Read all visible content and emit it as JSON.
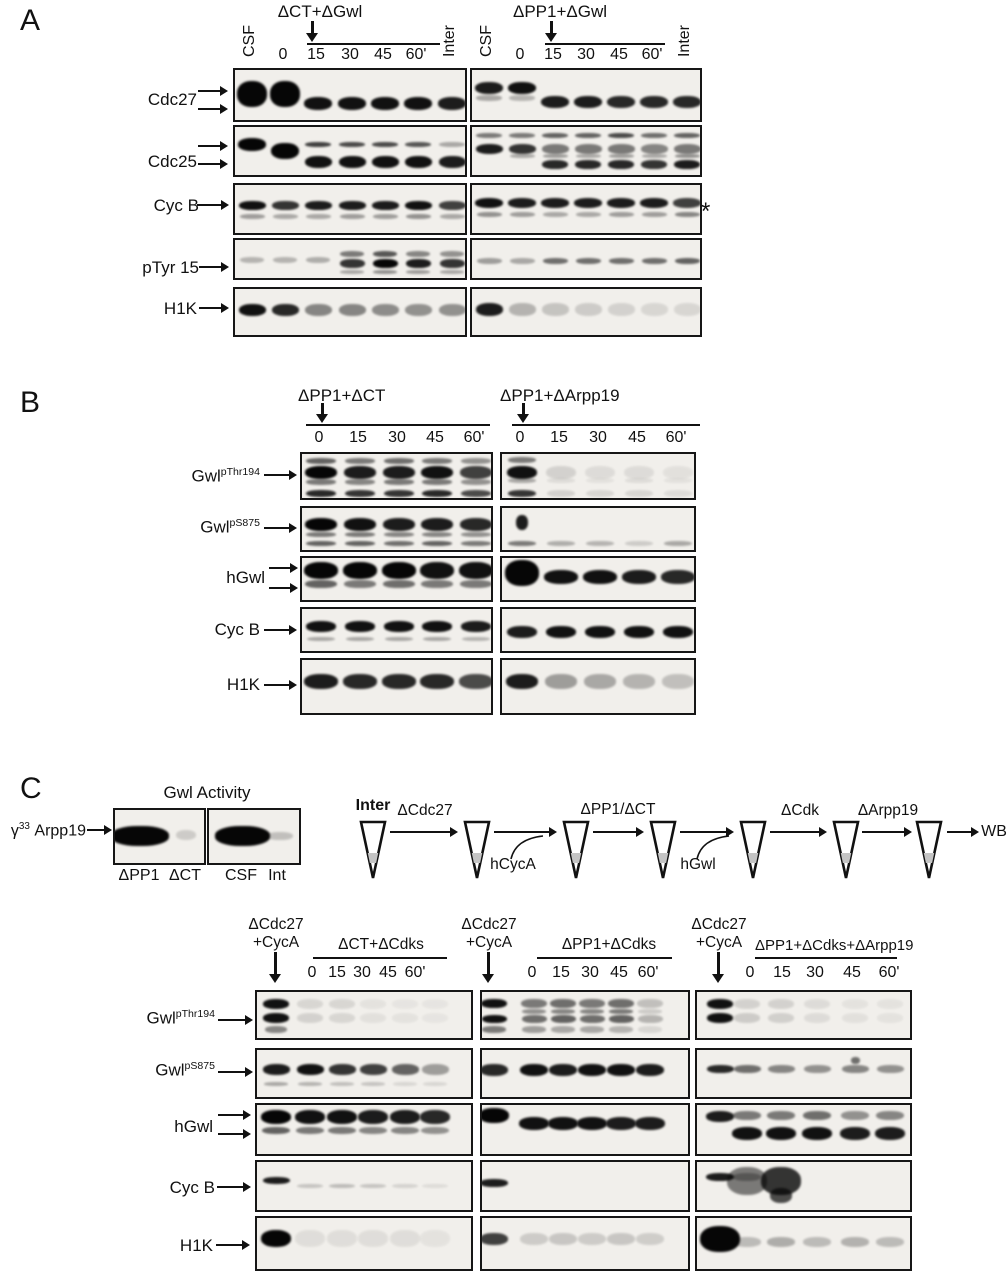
{
  "panel_a": {
    "label": "A",
    "group1": {
      "title": "ΔCT+ΔGwl",
      "lanes": [
        "CSF",
        "0",
        "15",
        "30",
        "45",
        "60'",
        "Inter"
      ]
    },
    "group2": {
      "title": "ΔPP1+ΔGwl",
      "lanes": [
        "CSF",
        "0",
        "15",
        "30",
        "45",
        "60'",
        "Inter"
      ]
    },
    "rows": [
      {
        "label": "Cdc27"
      },
      {
        "label": "Cdc25"
      },
      {
        "label": "Cyc B"
      },
      {
        "label": "pTyr 15"
      },
      {
        "label": "H1K"
      }
    ],
    "asterisk": "*"
  },
  "panel_b": {
    "label": "B",
    "group1": {
      "title": "ΔPP1+ΔCT",
      "lanes": [
        "0",
        "15",
        "30",
        "45",
        "60'"
      ]
    },
    "group2": {
      "title": "ΔPP1+ΔArpp19",
      "lanes": [
        "0",
        "15",
        "30",
        "45",
        "60'"
      ]
    },
    "rows": [
      {
        "base": "Gwl",
        "sup": "pThr194"
      },
      {
        "base": "Gwl",
        "sup": "pS875"
      },
      {
        "base": "hGwl",
        "sup": ""
      },
      {
        "base": "Cyc B",
        "sup": ""
      },
      {
        "base": "H1K",
        "sup": ""
      }
    ]
  },
  "panel_c": {
    "label": "C",
    "activity": {
      "title": "Gwl Activity",
      "probe_pre": "γ",
      "probe_sup": "33",
      "probe_post": " Arpp19",
      "lanes": [
        "ΔPP1",
        "ΔCT",
        "CSF",
        "Int"
      ]
    },
    "workflow": {
      "start": "Inter",
      "step1": "ΔCdc27",
      "add1": "hCycA",
      "step2": "ΔPP1/ΔCT",
      "add2": "hGwl",
      "step3": "ΔCdk",
      "step4": "ΔArpp19",
      "end": "WB"
    },
    "group1": {
      "spike_line1": "ΔCdc27",
      "spike_line2": "+CycA",
      "title": "ΔCT+ΔCdks",
      "lanes": [
        "0",
        "15",
        "30",
        "45",
        "60'"
      ]
    },
    "group2": {
      "spike_line1": "ΔCdc27",
      "spike_line2": "+CycA",
      "title": "ΔPP1+ΔCdks",
      "lanes": [
        "0",
        "15",
        "30",
        "45",
        "60'"
      ]
    },
    "group3": {
      "spike_line1": "ΔCdc27",
      "spike_line2": "+CycA",
      "title": "ΔPP1+ΔCdks+ΔArpp19",
      "lanes": [
        "0",
        "15",
        "30",
        "45",
        "60'"
      ]
    },
    "rows": [
      {
        "base": "Gwl",
        "sup": "pThr194"
      },
      {
        "base": "Gwl",
        "sup": "pS875"
      },
      {
        "base": "hGwl",
        "sup": ""
      },
      {
        "base": "Cyc B",
        "sup": ""
      },
      {
        "base": "H1K",
        "sup": ""
      }
    ]
  },
  "colors": {
    "ink": "#111111",
    "blot_bg": "#f1efeb",
    "band": "#060606",
    "tube_fill": "#c4c4c4"
  },
  "bands": {
    "a_l1": [
      [
        0.2,
        26,
        30,
        [
          1,
          1,
          0,
          0,
          0,
          0,
          0
        ]
      ],
      [
        0.5,
        13,
        28,
        [
          0,
          0,
          0.95,
          0.95,
          0.95,
          0.95,
          0.9
        ]
      ]
    ],
    "a_l2": [
      [
        0.22,
        13,
        28,
        [
          1,
          0,
          0,
          0,
          0,
          0,
          0
        ]
      ],
      [
        0.3,
        16,
        28,
        [
          0,
          1,
          0,
          0,
          0,
          0,
          0
        ]
      ],
      [
        0.28,
        5,
        26,
        [
          0,
          0,
          0.75,
          0.7,
          0.7,
          0.65,
          0.3
        ]
      ],
      [
        0.55,
        12,
        27,
        [
          0,
          0,
          0.95,
          0.95,
          0.95,
          0.95,
          0.9
        ]
      ]
    ],
    "a_l3": [
      [
        0.3,
        9,
        27,
        [
          0.95,
          0.8,
          0.9,
          0.9,
          0.9,
          0.95,
          0.75
        ]
      ],
      [
        0.55,
        5,
        25,
        [
          0.35,
          0.3,
          0.3,
          0.35,
          0.35,
          0.4,
          0.3
        ]
      ]
    ],
    "a_l4": [
      [
        0.4,
        6,
        24,
        [
          0.25,
          0.25,
          0.28,
          0,
          0,
          0,
          0
        ]
      ],
      [
        0.25,
        6,
        24,
        [
          0,
          0,
          0,
          0.5,
          0.65,
          0.45,
          0.4
        ]
      ],
      [
        0.45,
        9,
        25,
        [
          0,
          0,
          0,
          0.8,
          1,
          0.9,
          0.8
        ]
      ],
      [
        0.72,
        4,
        24,
        [
          0,
          0,
          0,
          0.3,
          0.4,
          0.35,
          0.3
        ]
      ]
    ],
    "a_l5": [
      [
        0.3,
        12,
        27,
        [
          0.95,
          0.85,
          0.45,
          0.45,
          0.42,
          0.4,
          0.4
        ]
      ]
    ],
    "a_r1": [
      [
        0.22,
        12,
        28,
        [
          0.9,
          0.95,
          0,
          0,
          0,
          0,
          0
        ]
      ],
      [
        0.46,
        6,
        26,
        [
          0.3,
          0.25,
          0,
          0,
          0,
          0,
          0
        ]
      ],
      [
        0.48,
        12,
        28,
        [
          0,
          0,
          0.9,
          0.9,
          0.85,
          0.85,
          0.85
        ]
      ]
    ],
    "a_r2": [
      [
        0.12,
        5,
        26,
        [
          0.5,
          0.5,
          0.6,
          0.6,
          0.7,
          0.55,
          0.6
        ]
      ],
      [
        0.33,
        10,
        27,
        [
          0.9,
          0.8,
          0.5,
          0.5,
          0.5,
          0.45,
          0.5
        ]
      ],
      [
        0.52,
        4,
        25,
        [
          0,
          0.3,
          0.35,
          0.3,
          0.35,
          0.3,
          0.4
        ]
      ],
      [
        0.63,
        9,
        26,
        [
          0,
          0,
          0.85,
          0.85,
          0.85,
          0.8,
          0.9
        ]
      ]
    ],
    "a_r3": [
      [
        0.25,
        10,
        28,
        [
          0.95,
          0.9,
          0.9,
          0.9,
          0.9,
          0.9,
          0.75
        ]
      ],
      [
        0.52,
        5,
        25,
        [
          0.4,
          0.35,
          0.3,
          0.3,
          0.35,
          0.35,
          0.45
        ]
      ]
    ],
    "a_r4": [
      [
        0.42,
        6,
        25,
        [
          0.35,
          0.3,
          0.55,
          0.55,
          0.55,
          0.55,
          0.6
        ]
      ]
    ],
    "a_r5": [
      [
        0.28,
        13,
        27,
        [
          0.9,
          0.25,
          0.18,
          0.15,
          0.12,
          0.1,
          0.1
        ]
      ]
    ],
    "b_l1": [
      [
        0.08,
        6,
        30,
        [
          0.6,
          0.5,
          0.55,
          0.5,
          0.4
        ]
      ],
      [
        0.25,
        13,
        32,
        [
          1,
          0.9,
          0.9,
          0.95,
          0.75
        ]
      ],
      [
        0.52,
        6,
        30,
        [
          0.5,
          0.45,
          0.5,
          0.5,
          0.4
        ]
      ],
      [
        0.76,
        7,
        30,
        [
          0.85,
          0.8,
          0.8,
          0.85,
          0.7
        ]
      ]
    ],
    "b_r1": [
      [
        0.06,
        6,
        28,
        [
          0.5,
          0,
          0,
          0,
          0
        ]
      ],
      [
        0.25,
        13,
        30,
        [
          0.95,
          0.12,
          0.08,
          0.08,
          0.06
        ]
      ],
      [
        0.5,
        5,
        28,
        [
          0.3,
          0.08,
          0.06,
          0.08,
          0.06
        ]
      ],
      [
        0.76,
        7,
        28,
        [
          0.8,
          0.12,
          0.1,
          0.1,
          0.08
        ]
      ]
    ],
    "b_l2": [
      [
        0.22,
        13,
        32,
        [
          1,
          0.95,
          0.9,
          0.9,
          0.85
        ]
      ],
      [
        0.52,
        5,
        30,
        [
          0.5,
          0.5,
          0.45,
          0.45,
          0.4
        ]
      ],
      [
        0.72,
        5,
        30,
        [
          0.6,
          0.6,
          0.55,
          0.6,
          0.5
        ]
      ]
    ],
    "b_r2": [
      [
        0.15,
        15,
        12,
        [
          0.9,
          0,
          0,
          0,
          0
        ]
      ],
      [
        0.72,
        5,
        28,
        [
          0.5,
          0.28,
          0.25,
          0.15,
          0.3
        ]
      ]
    ],
    "b_l3": [
      [
        0.08,
        17,
        34,
        [
          1,
          1,
          1,
          0.95,
          0.95
        ]
      ],
      [
        0.48,
        8,
        32,
        [
          0.6,
          0.5,
          0.55,
          0.5,
          0.5
        ]
      ]
    ],
    "b_r3": [
      [
        0.05,
        26,
        34,
        [
          1,
          0,
          0,
          0,
          0
        ]
      ],
      [
        0.25,
        14,
        34,
        [
          0,
          0.95,
          0.95,
          0.9,
          0.85
        ]
      ]
    ],
    "b_l4": [
      [
        0.25,
        11,
        30,
        [
          0.95,
          0.95,
          0.95,
          0.95,
          0.9
        ]
      ],
      [
        0.6,
        4,
        28,
        [
          0.3,
          0.3,
          0.3,
          0.3,
          0.25
        ]
      ]
    ],
    "b_r4": [
      [
        0.38,
        12,
        30,
        [
          0.9,
          0.95,
          0.95,
          0.95,
          0.95
        ]
      ]
    ],
    "b_l5": [
      [
        0.25,
        15,
        34,
        [
          0.9,
          0.85,
          0.85,
          0.85,
          0.7
        ]
      ]
    ],
    "b_r5": [
      [
        0.25,
        15,
        32,
        [
          0.9,
          0.35,
          0.3,
          0.25,
          0.2
        ]
      ]
    ],
    "c_act1": [
      [
        0.28,
        20,
        58,
        [
          1,
          0
        ]
      ],
      [
        0.35,
        10,
        20,
        [
          0,
          0.15
        ]
      ]
    ],
    "c_act2": [
      [
        0.28,
        20,
        55,
        [
          1,
          0
        ]
      ],
      [
        0.38,
        8,
        26,
        [
          0,
          0.2
        ]
      ]
    ],
    "c_g1r1": [
      [
        0.14,
        10,
        26,
        [
          0.95,
          0.1,
          0.1,
          0.05,
          0.04,
          0.04
        ]
      ],
      [
        0.42,
        10,
        26,
        [
          0.95,
          0.12,
          0.1,
          0.06,
          0.05,
          0.04
        ]
      ],
      [
        0.68,
        7,
        22,
        [
          0.45,
          0,
          0,
          0,
          0,
          0
        ]
      ]
    ],
    "c_g2r1": [
      [
        0.14,
        9,
        26,
        [
          0.95,
          0.5,
          0.55,
          0.5,
          0.55,
          0.2
        ]
      ],
      [
        0.34,
        5,
        24,
        [
          0,
          0.4,
          0.45,
          0.45,
          0.5,
          0.15
        ]
      ],
      [
        0.46,
        8,
        25,
        [
          0.95,
          0.55,
          0.6,
          0.55,
          0.6,
          0.25
        ]
      ],
      [
        0.68,
        7,
        24,
        [
          0.5,
          0.35,
          0.3,
          0.3,
          0.25,
          0.1
        ]
      ]
    ],
    "c_g3r1": [
      [
        0.14,
        10,
        26,
        [
          0.95,
          0.12,
          0.12,
          0.08,
          0.05,
          0.05
        ]
      ],
      [
        0.42,
        10,
        26,
        [
          0.95,
          0.15,
          0.13,
          0.08,
          0.06,
          0.05
        ]
      ]
    ],
    "c_g1r2": [
      [
        0.28,
        11,
        27,
        [
          0.9,
          0.95,
          0.8,
          0.75,
          0.6,
          0.35
        ]
      ],
      [
        0.62,
        4,
        24,
        [
          0.3,
          0.25,
          0.2,
          0.18,
          0.1,
          0.1
        ]
      ]
    ],
    "c_g2r2": [
      [
        0.28,
        12,
        28,
        [
          0.85,
          0.95,
          0.9,
          0.95,
          0.95,
          0.9
        ]
      ]
    ],
    "c_g3r2": [
      [
        0.3,
        8,
        27,
        [
          0.85,
          0.55,
          0.45,
          0.4,
          0.45,
          0.4
        ]
      ],
      [
        0.14,
        7,
        9,
        [
          0,
          0,
          0,
          0,
          0.55,
          0
        ]
      ]
    ],
    "c_g1r3": [
      [
        0.1,
        14,
        30,
        [
          1,
          0.95,
          0.95,
          0.9,
          0.9,
          0.85
        ]
      ],
      [
        0.42,
        7,
        28,
        [
          0.6,
          0.5,
          0.5,
          0.45,
          0.45,
          0.4
        ]
      ]
    ],
    "c_g2r3": [
      [
        0.06,
        15,
        30,
        [
          1,
          0,
          0,
          0,
          0,
          0
        ]
      ],
      [
        0.22,
        13,
        30,
        [
          0,
          0.95,
          0.95,
          0.95,
          0.9,
          0.9
        ]
      ]
    ],
    "c_g3r3": [
      [
        0.12,
        11,
        28,
        [
          0.9,
          0,
          0,
          0,
          0,
          0
        ]
      ],
      [
        0.12,
        9,
        28,
        [
          0,
          0.5,
          0.5,
          0.55,
          0.4,
          0.45
        ]
      ],
      [
        0.42,
        13,
        30,
        [
          0,
          0.95,
          0.95,
          0.95,
          0.9,
          0.9
        ]
      ]
    ],
    "c_g1r4": [
      [
        0.28,
        7,
        27,
        [
          0.9,
          0,
          0,
          0,
          0,
          0
        ]
      ],
      [
        0.42,
        4,
        26,
        [
          0,
          0.18,
          0.22,
          0.18,
          0.12,
          0.08
        ]
      ]
    ],
    "c_g2r4": [
      [
        0.32,
        8,
        28,
        [
          0.9,
          0,
          0,
          0,
          0,
          0
        ]
      ]
    ],
    "c_g3r4": [
      [
        0.22,
        8,
        28,
        [
          0.9,
          0.3,
          0,
          0,
          0,
          0
        ]
      ],
      [
        0.1,
        28,
        40,
        [
          0,
          0.5,
          0.8,
          0,
          0,
          0
        ]
      ],
      [
        0.5,
        15,
        22,
        [
          0,
          0,
          0.7,
          0,
          0,
          0
        ]
      ]
    ],
    "c_g1r5": [
      [
        0.22,
        17,
        30,
        [
          1,
          0.07,
          0.07,
          0.07,
          0.07,
          0.05
        ]
      ]
    ],
    "c_g2r5": [
      [
        0.28,
        12,
        28,
        [
          0.75,
          0.15,
          0.17,
          0.15,
          0.17,
          0.14
        ]
      ]
    ],
    "c_g3r5": [
      [
        0.15,
        26,
        40,
        [
          1,
          0,
          0,
          0,
          0,
          0
        ]
      ],
      [
        0.35,
        10,
        28,
        [
          0,
          0.22,
          0.28,
          0.22,
          0.26,
          0.22
        ]
      ]
    ]
  }
}
